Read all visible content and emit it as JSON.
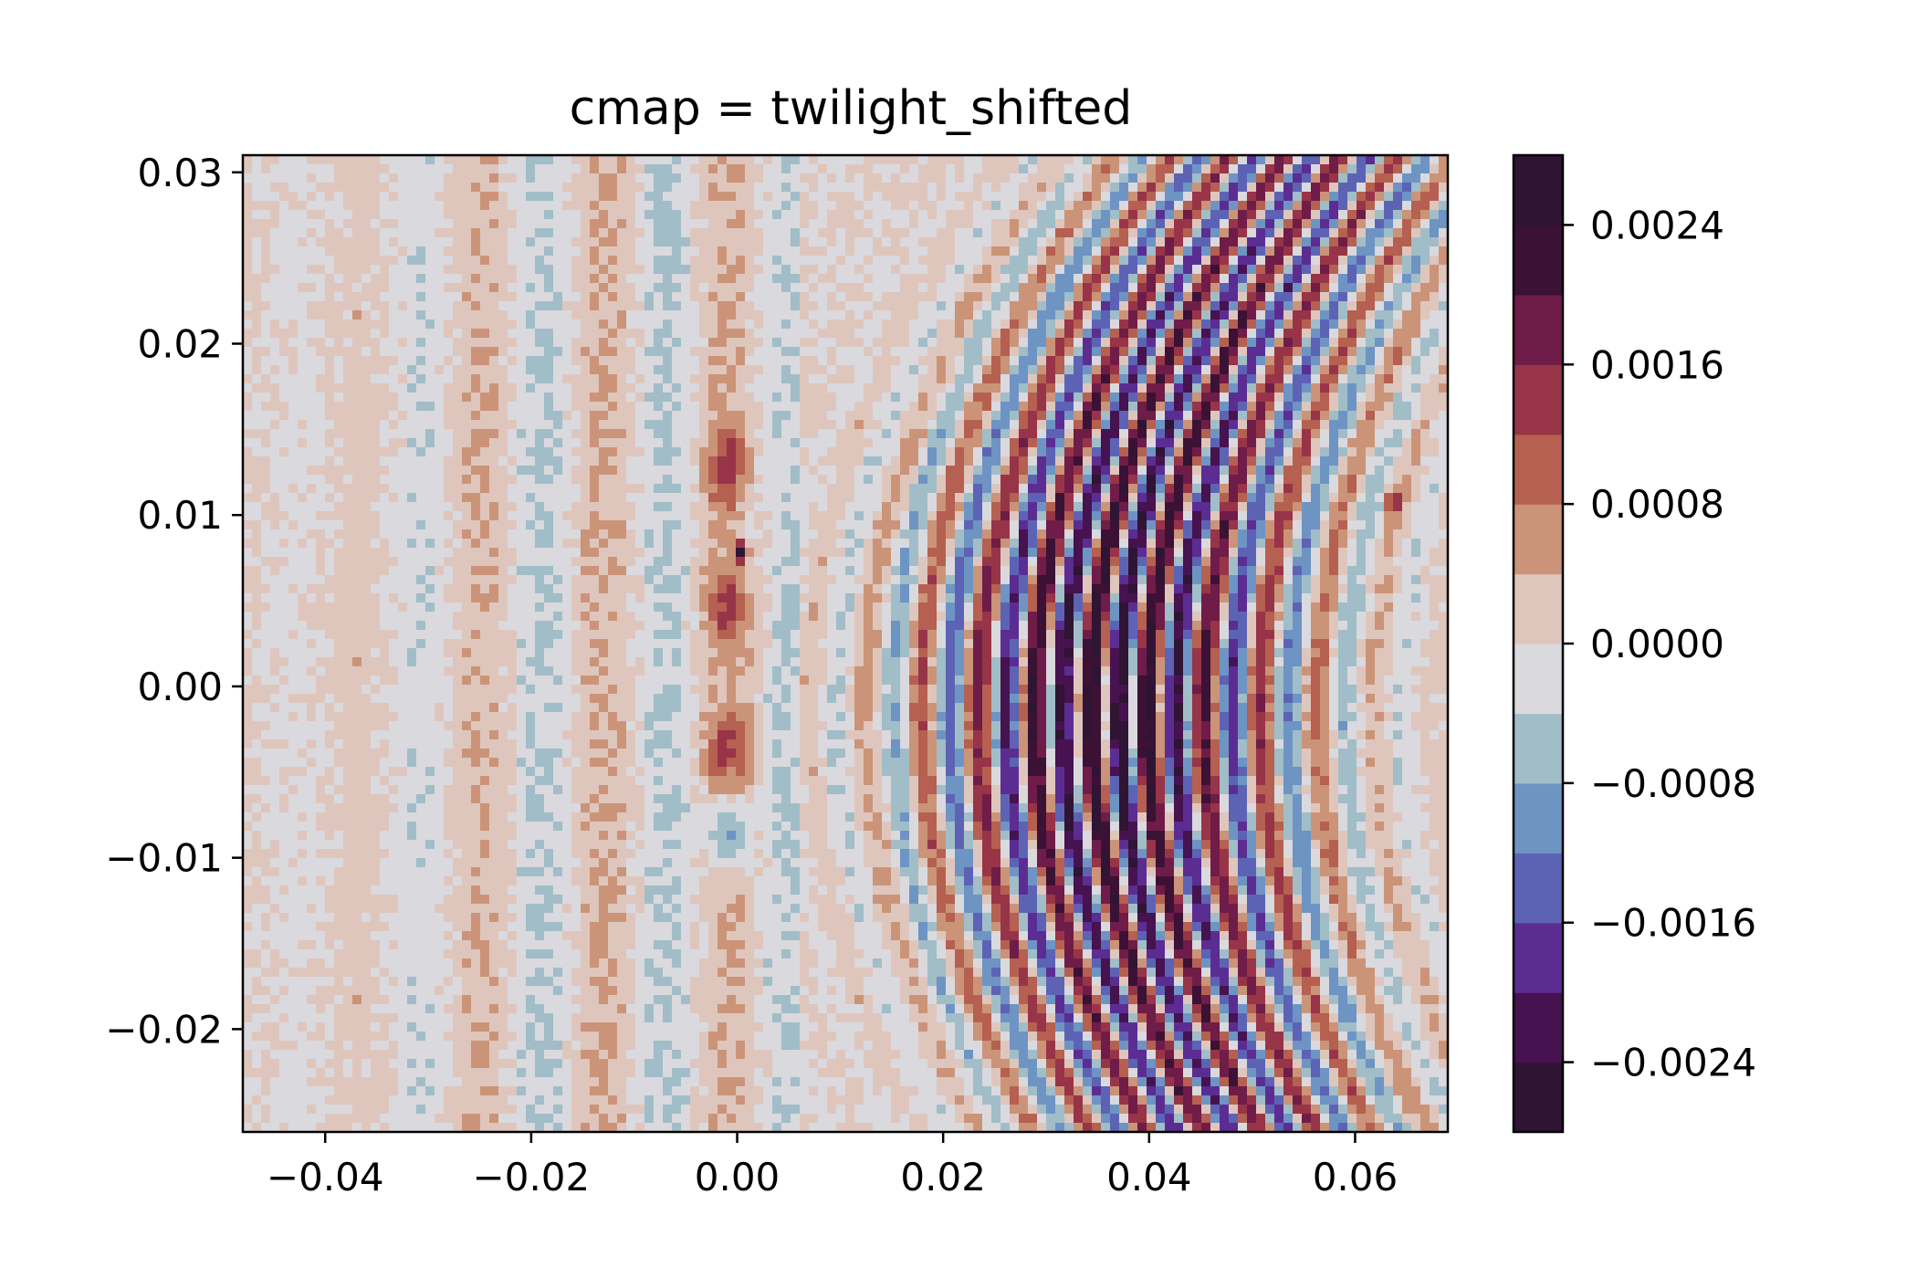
{
  "chart_data": {
    "type": "heatmap",
    "subtype": "filled-contour",
    "title": "cmap = twilight_shifted",
    "xlabel": "",
    "ylabel": "",
    "xlim": [
      -0.048,
      0.069
    ],
    "ylim": [
      -0.026,
      0.031
    ],
    "x_ticks": [
      -0.04,
      -0.02,
      0.0,
      0.02,
      0.04,
      0.06
    ],
    "x_tick_labels": [
      "−0.04",
      "−0.02",
      "0.00",
      "0.02",
      "0.04",
      "0.06"
    ],
    "y_ticks": [
      -0.02,
      -0.01,
      0.0,
      0.01,
      0.02,
      0.03
    ],
    "y_tick_labels": [
      "−0.02",
      "−0.01",
      "0.00",
      "0.01",
      "0.02",
      "0.03"
    ],
    "grid": false,
    "colormap": "twilight_shifted",
    "colorbar": {
      "levels": [
        -0.0028,
        -0.0024,
        -0.002,
        -0.0016,
        -0.0012,
        -0.0008,
        -0.0004,
        0.0,
        0.0004,
        0.0008,
        0.0012,
        0.0016,
        0.002,
        0.0024,
        0.0028
      ],
      "level_colors": [
        "#2f1434",
        "#46124f",
        "#5b2d93",
        "#5d63b4",
        "#6e94c4",
        "#a1bdc8",
        "#dad9de",
        "#dfc6bd",
        "#cb9478",
        "#b56050",
        "#983448",
        "#6f1c48",
        "#3b1235",
        "#2f1434"
      ],
      "tick_values": [
        -0.0024,
        -0.0016,
        -0.0008,
        0.0,
        0.0008,
        0.0016,
        0.0024
      ],
      "tick_labels": [
        "−0.0024",
        "−0.0016",
        "−0.0008",
        "0.0000",
        "0.0008",
        "0.0016",
        "0.0024"
      ]
    },
    "field": {
      "description": "interference fringes: vertical-ish stripes, strongest around x=0.02–0.05, weak noisy band on left, isolated blobs near x=0",
      "stripe_center_x": 0.036,
      "stripe_period_x": 0.0055,
      "peak_amplitude": 0.0028,
      "blobs": [
        {
          "x": -0.001,
          "y": 0.013,
          "value": 0.0011
        },
        {
          "x": -0.001,
          "y": 0.0045,
          "value": 0.001
        },
        {
          "x": -0.001,
          "y": -0.0038,
          "value": 0.0009
        },
        {
          "x": -0.001,
          "y": -0.0085,
          "value": -0.0012
        },
        {
          "x": 0.0004,
          "y": 0.0078,
          "value": 0.0027
        },
        {
          "x": 0.0637,
          "y": 0.0108,
          "value": 0.0027
        }
      ]
    }
  }
}
